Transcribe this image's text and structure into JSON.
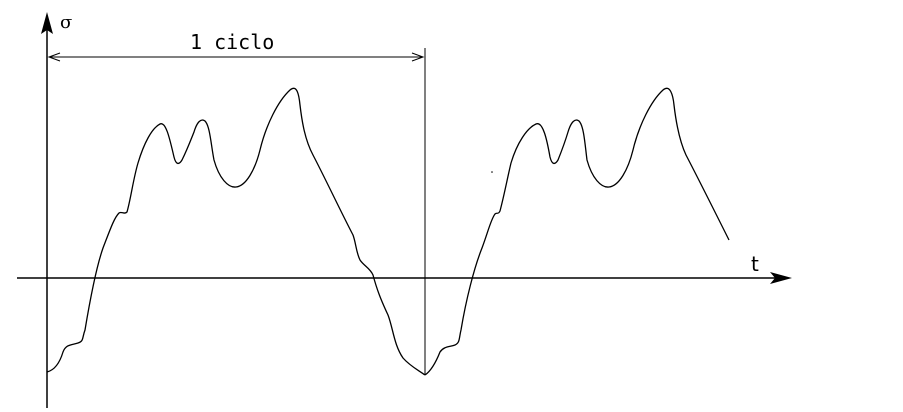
{
  "diagram": {
    "y_axis_label": "σ",
    "x_axis_label": "t",
    "cycle_label": "1 ciclo"
  },
  "colors": {
    "stroke": "#000000",
    "background": "#ffffff"
  }
}
